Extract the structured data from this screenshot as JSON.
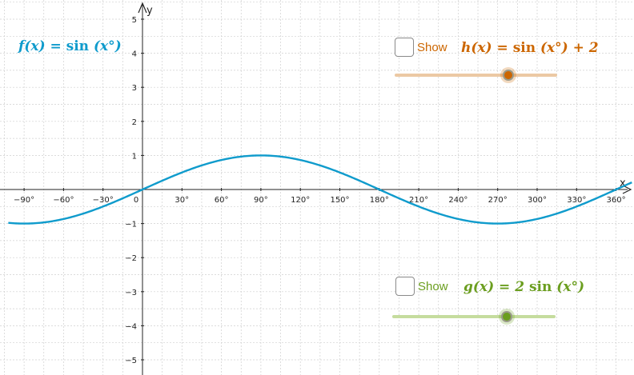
{
  "graph": {
    "x_axis_label": "x",
    "y_axis_label": "y",
    "x_ticks": [
      "−90°",
      "−60°",
      "−30°",
      "0",
      "30°",
      "60°",
      "90°",
      "120°",
      "150°",
      "180°",
      "210°",
      "240°",
      "270°",
      "300°",
      "330°",
      "360°"
    ],
    "y_ticks": [
      "5",
      "4",
      "3",
      "2",
      "1",
      "−1",
      "−2",
      "−3",
      "−4",
      "−5"
    ],
    "curve_color": "#0f9bcc",
    "grid_color": "#cfcfcf"
  },
  "chart_data": {
    "type": "line",
    "series": [
      {
        "function": "sin(x°)",
        "x": [
          -102,
          -90,
          -60,
          -30,
          0,
          30,
          60,
          90,
          120,
          150,
          180,
          210,
          240,
          270,
          300,
          330,
          360,
          372
        ],
        "y": [
          -0.978,
          -1,
          -0.866,
          -0.5,
          0,
          0.5,
          0.866,
          1,
          0.866,
          0.5,
          0,
          -0.5,
          -0.866,
          -1,
          -0.866,
          -0.5,
          0,
          0.208
        ]
      }
    ],
    "xlabel": "x",
    "ylabel": "y",
    "xlim": [
      -102,
      372
    ],
    "ylim": [
      -5.5,
      5.5
    ],
    "grid": true
  },
  "functions": {
    "f": {
      "name": "f",
      "expr": "sin",
      "color": "#0f9bcc"
    },
    "h": {
      "name": "h",
      "expr": "sin",
      "suffix": "+ 2",
      "color": "#cc6600"
    },
    "g": {
      "name": "g",
      "coeff": "2",
      "expr": "sin",
      "color": "#6b9e1f"
    }
  },
  "controls": {
    "h_checkbox": {
      "label": "Show",
      "checked": false
    },
    "h_slider": {
      "value": 0.7,
      "color": "#cc6600"
    },
    "g_checkbox": {
      "label": "Show",
      "checked": false
    },
    "g_slider": {
      "value": 0.7,
      "color": "#6b9e1f"
    }
  }
}
